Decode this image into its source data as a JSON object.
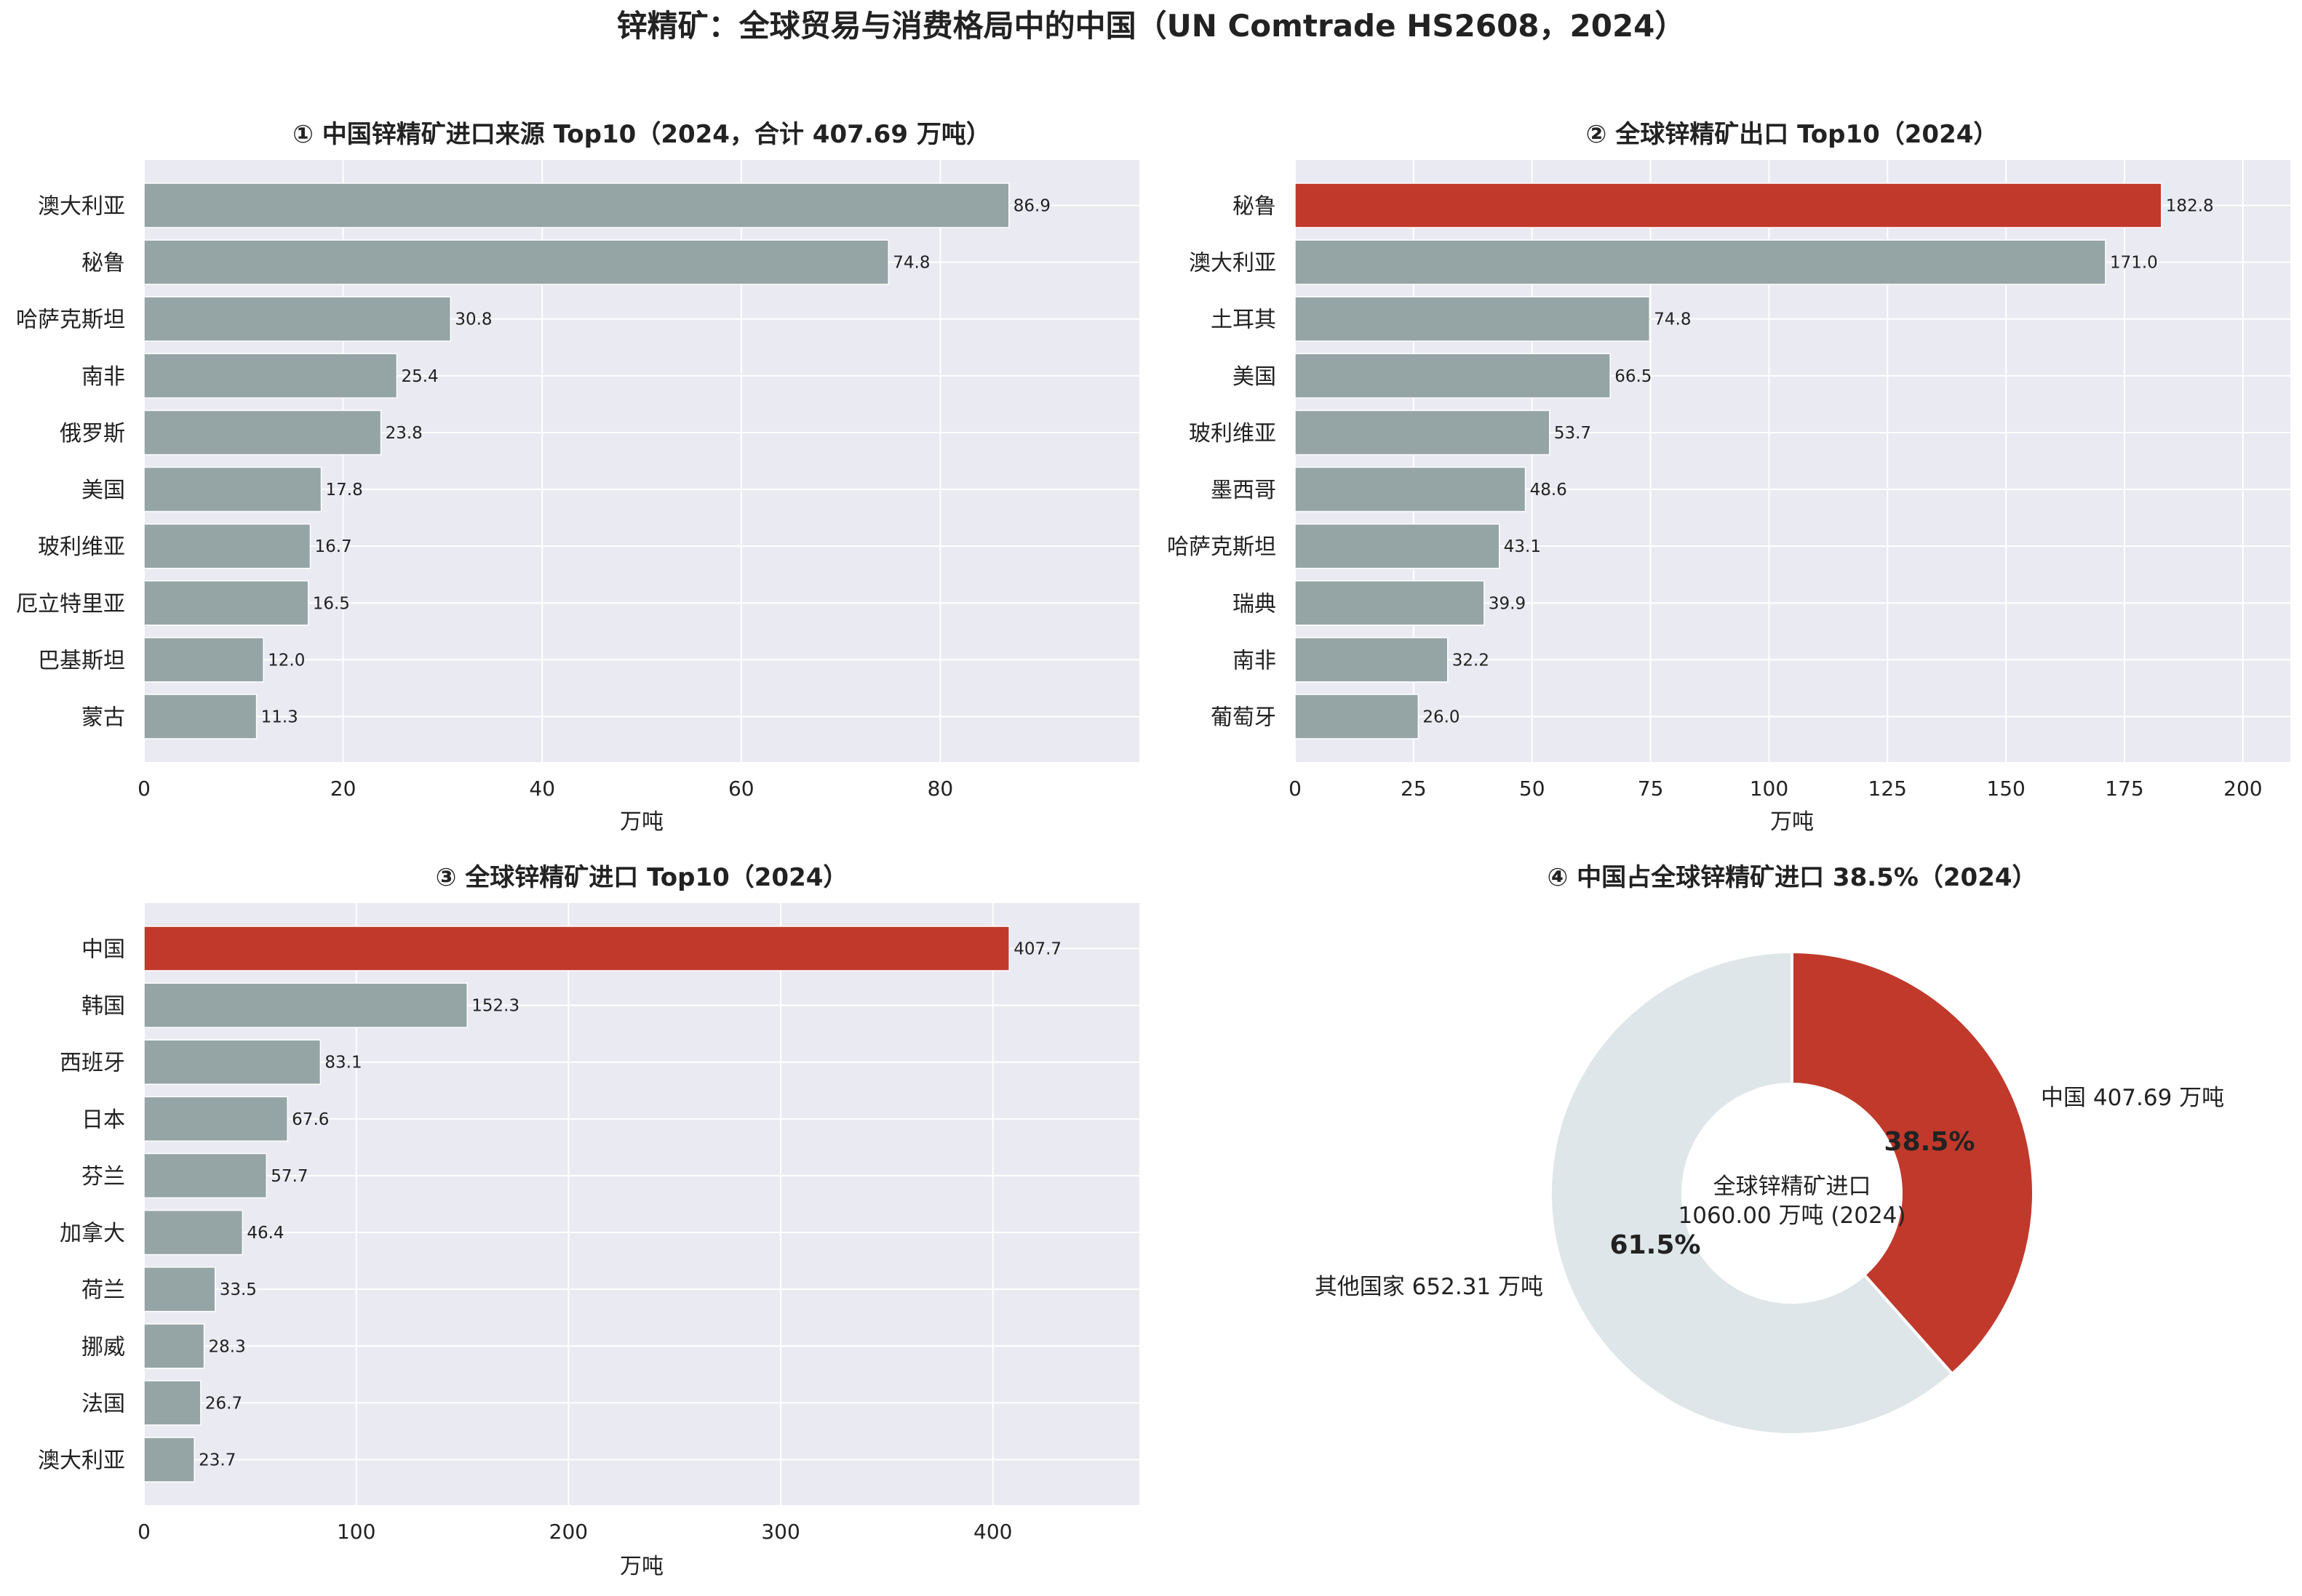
{
  "figure_title": "锌精矿：全球贸易与消费格局中的中国（UN Comtrade HS2608，2024）",
  "colors": {
    "panel_bg": "#EAEAF2",
    "bar_default": "#95A5A6",
    "bar_highlight": "#C0392B",
    "donut_other": "#DFE6E9",
    "text": "#222222"
  },
  "chart_data": [
    {
      "type": "bar",
      "orientation": "horizontal",
      "title": "① 中国锌精矿进口来源 Top10（2024，合计 407.69 万吨）",
      "xlabel": "万吨",
      "categories": [
        "澳大利亚",
        "秘鲁",
        "哈萨克斯坦",
        "南非",
        "俄罗斯",
        "美国",
        "玻利维亚",
        "厄立特里亚",
        "巴基斯坦",
        "蒙古"
      ],
      "values": [
        86.9,
        74.8,
        30.8,
        25.4,
        23.8,
        17.8,
        16.7,
        16.5,
        12.0,
        11.3
      ],
      "value_labels": [
        "86.9",
        "74.8",
        "30.8",
        "25.4",
        "23.8",
        "17.8",
        "16.7",
        "16.5",
        "12.0",
        "11.3"
      ],
      "highlight": [],
      "xlim": [
        0,
        100
      ],
      "xticks": [
        0,
        20,
        40,
        60,
        80
      ],
      "grid": true
    },
    {
      "type": "bar",
      "orientation": "horizontal",
      "title": "② 全球锌精矿出口 Top10（2024）",
      "xlabel": "万吨",
      "categories": [
        "秘鲁",
        "澳大利亚",
        "土耳其",
        "美国",
        "玻利维亚",
        "墨西哥",
        "哈萨克斯坦",
        "瑞典",
        "南非",
        "葡萄牙"
      ],
      "values": [
        182.8,
        171.0,
        74.8,
        66.5,
        53.7,
        48.6,
        43.1,
        39.9,
        32.2,
        26.0
      ],
      "value_labels": [
        "182.8",
        "171.0",
        "74.8",
        "66.5",
        "53.7",
        "48.6",
        "43.1",
        "39.9",
        "32.2",
        "26.0"
      ],
      "highlight": [
        0
      ],
      "xlim": [
        0,
        210
      ],
      "xticks": [
        0,
        25,
        50,
        75,
        100,
        125,
        150,
        175,
        200
      ],
      "grid": true
    },
    {
      "type": "bar",
      "orientation": "horizontal",
      "title": "③ 全球锌精矿进口 Top10（2024）",
      "xlabel": "万吨",
      "categories": [
        "中国",
        "韩国",
        "西班牙",
        "日本",
        "芬兰",
        "加拿大",
        "荷兰",
        "挪威",
        "法国",
        "澳大利亚"
      ],
      "values": [
        407.7,
        152.3,
        83.1,
        67.6,
        57.7,
        46.4,
        33.5,
        28.3,
        26.7,
        23.7
      ],
      "value_labels": [
        "407.7",
        "152.3",
        "83.1",
        "67.6",
        "57.7",
        "46.4",
        "33.5",
        "28.3",
        "26.7",
        "23.7"
      ],
      "highlight": [
        0
      ],
      "xlim": [
        0,
        469
      ],
      "xticks": [
        0,
        100,
        200,
        300,
        400
      ],
      "grid": true
    },
    {
      "type": "pie",
      "title": "④ 中国占全球锌精矿进口 38.5%（2024）",
      "slices": [
        {
          "label": "中国 407.69 万吨",
          "value": 407.69,
          "pct_label": "38.5%",
          "color": "#C0392B"
        },
        {
          "label": "其他国家 652.31 万吨",
          "value": 652.31,
          "pct_label": "61.5%",
          "color": "#DFE6E9"
        }
      ],
      "center_text": [
        "全球锌精矿进口",
        "1060.00 万吨 (2024)"
      ]
    }
  ]
}
